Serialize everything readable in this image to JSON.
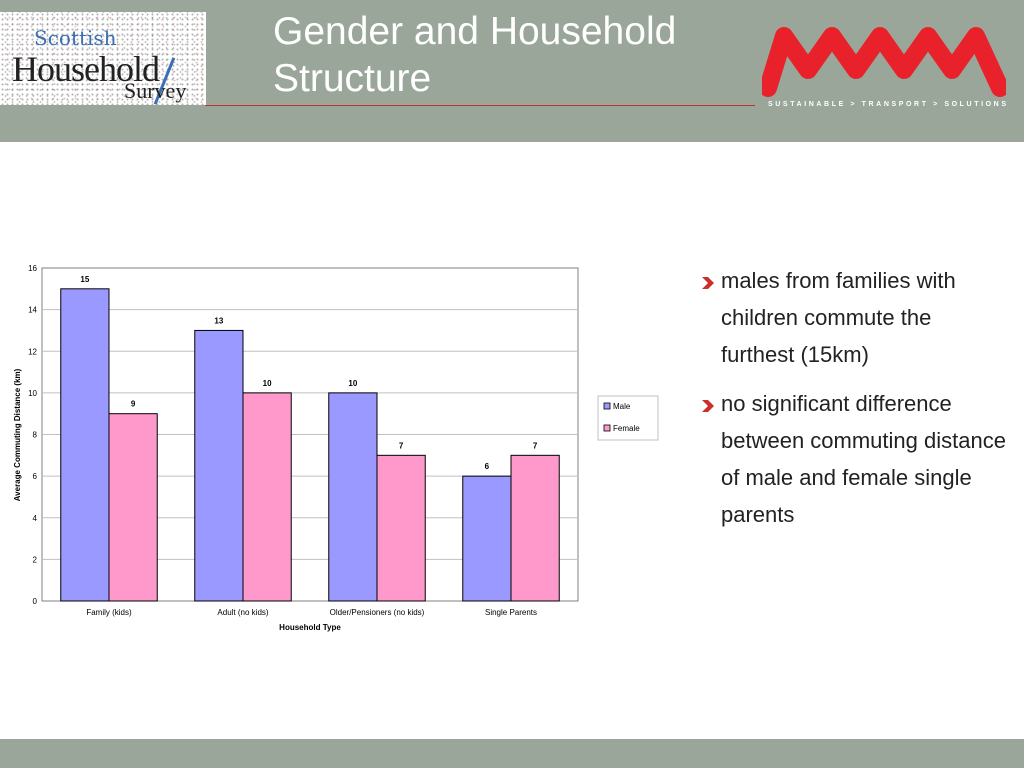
{
  "header": {
    "title_line1": "Gender and Household",
    "title_line2": "Structure",
    "logo_left": {
      "line1": "Scottish",
      "line2": "Household",
      "line3": "Survey"
    },
    "logo_right_tagline": "SUSTAINABLE > TRANSPORT > SOLUTIONS",
    "accent_color": "#c9302c",
    "band_color": "#9aa699"
  },
  "bullets": [
    {
      "text": "males from families with children commute the furthest (15km)"
    },
    {
      "text": "no significant difference between commuting distance of male and female single parents"
    }
  ],
  "chart_data": {
    "type": "bar",
    "categories": [
      "Family (kids)",
      "Adult (no kids)",
      "Older/Pensioners (no kids)",
      "Single Parents"
    ],
    "series": [
      {
        "name": "Male",
        "values": [
          15,
          13,
          10,
          6
        ],
        "color": "#9999ff"
      },
      {
        "name": "Female",
        "values": [
          9,
          10,
          7,
          7
        ],
        "color": "#ff99cc"
      }
    ],
    "xlabel": "Household Type",
    "ylabel": "Average Commuting Distance (km)",
    "ylim": [
      0,
      16
    ],
    "yticks": [
      0,
      2,
      4,
      6,
      8,
      10,
      12,
      14,
      16
    ],
    "grid": true,
    "legend": "right",
    "data_labels": true
  }
}
